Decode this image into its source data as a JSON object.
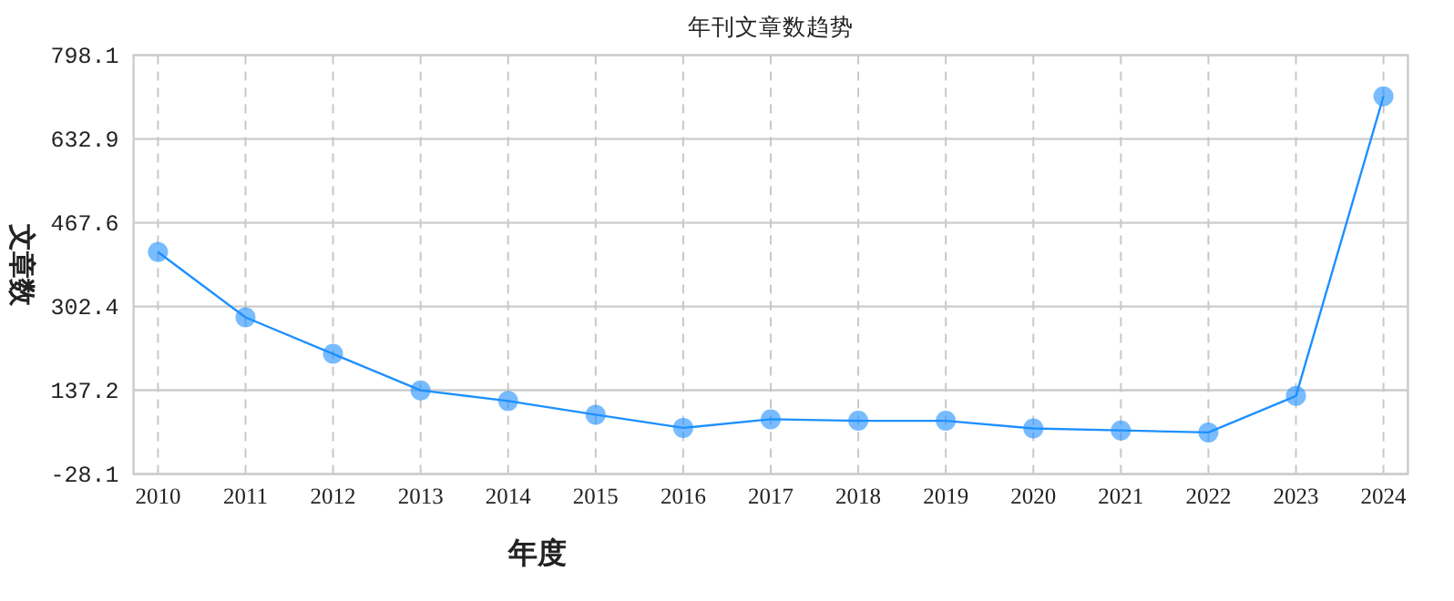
{
  "chart_data": {
    "type": "line",
    "title": "年刊文章数趋势",
    "xlabel": "年度",
    "ylabel": "文章数",
    "categories": [
      "2010",
      "2011",
      "2012",
      "2013",
      "2014",
      "2015",
      "2016",
      "2017",
      "2018",
      "2019",
      "2020",
      "2021",
      "2022",
      "2023",
      "2024"
    ],
    "series": [
      {
        "color": "#1e90ff",
        "values": [
          410,
          281,
          209,
          137,
          116,
          89,
          63,
          80,
          77,
          77,
          62,
          58,
          54,
          126,
          717
        ]
      }
    ],
    "ylim": [
      -28.1,
      798.1
    ],
    "yticks": [
      -28.1,
      137.2,
      302.4,
      467.6,
      632.9,
      798.1
    ],
    "grid": true,
    "marker": "circle"
  }
}
